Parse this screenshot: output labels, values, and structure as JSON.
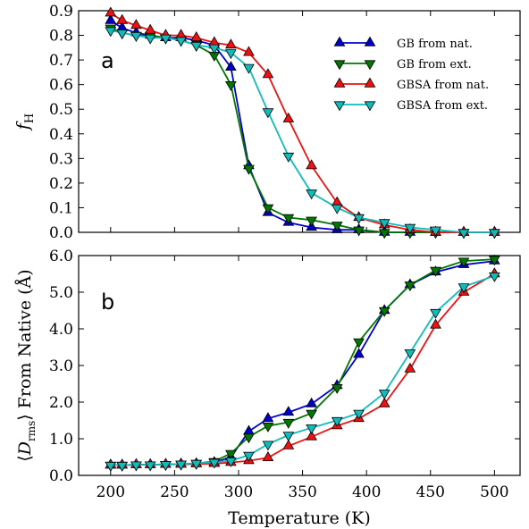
{
  "chart_data": [
    {
      "type": "line",
      "panel_label": "a",
      "ylabel": "f_H",
      "ylim": [
        0.0,
        0.9
      ],
      "xlim": [
        175,
        520
      ],
      "yticks": [
        "0.0",
        "0.1",
        "0.2",
        "0.3",
        "0.4",
        "0.5",
        "0.6",
        "0.7",
        "0.8",
        "0.9"
      ],
      "legend": "top-right",
      "series": [
        {
          "name": "GB from nat.",
          "color": "#0000cc",
          "marker": "triangle-up",
          "x": [
            200,
            209,
            220,
            231,
            243,
            255,
            267,
            281,
            294,
            308,
            323,
            339,
            357,
            377,
            394,
            414,
            434,
            454,
            476,
            500
          ],
          "y": [
            0.86,
            0.83,
            0.81,
            0.8,
            0.79,
            0.79,
            0.78,
            0.76,
            0.67,
            0.27,
            0.08,
            0.04,
            0.02,
            0.01,
            0.01,
            0.0,
            0.0,
            0.0,
            0.0,
            0.0
          ]
        },
        {
          "name": "GB from ext.",
          "color": "#007700",
          "marker": "triangle-down",
          "x": [
            200,
            209,
            220,
            231,
            243,
            255,
            267,
            281,
            294,
            308,
            323,
            339,
            357,
            377,
            394,
            414,
            434,
            454,
            476,
            500
          ],
          "y": [
            0.83,
            0.81,
            0.8,
            0.8,
            0.79,
            0.78,
            0.76,
            0.72,
            0.6,
            0.26,
            0.1,
            0.06,
            0.05,
            0.03,
            0.01,
            0.0,
            0.0,
            0.0,
            0.0,
            0.0
          ]
        },
        {
          "name": "GBSA from nat.",
          "color": "#ee1111",
          "marker": "triangle-up",
          "x": [
            200,
            209,
            220,
            231,
            243,
            255,
            267,
            281,
            294,
            308,
            323,
            339,
            357,
            377,
            394,
            414,
            434,
            454,
            476,
            500
          ],
          "y": [
            0.89,
            0.86,
            0.84,
            0.82,
            0.8,
            0.8,
            0.79,
            0.77,
            0.76,
            0.73,
            0.64,
            0.46,
            0.27,
            0.12,
            0.06,
            0.03,
            0.01,
            0.0,
            0.0,
            0.0
          ]
        },
        {
          "name": "GBSA from ext.",
          "color": "#11bbbb",
          "marker": "triangle-down",
          "x": [
            200,
            209,
            220,
            231,
            243,
            255,
            267,
            281,
            294,
            308,
            323,
            339,
            357,
            377,
            394,
            414,
            434,
            454,
            476,
            500
          ],
          "y": [
            0.82,
            0.81,
            0.8,
            0.79,
            0.79,
            0.78,
            0.76,
            0.75,
            0.73,
            0.67,
            0.49,
            0.31,
            0.16,
            0.1,
            0.06,
            0.04,
            0.02,
            0.01,
            0.0,
            0.0
          ]
        }
      ]
    },
    {
      "type": "line",
      "panel_label": "b",
      "xlabel": "Temperature (K)",
      "ylabel": "⟨D_rms⟩ From Native (Å)",
      "ylim": [
        0.0,
        6.0
      ],
      "xlim": [
        175,
        520
      ],
      "xticks": [
        "200",
        "250",
        "300",
        "350",
        "400",
        "450",
        "500"
      ],
      "yticks": [
        "0.0",
        "1.0",
        "2.0",
        "3.0",
        "4.0",
        "5.0",
        "6.0"
      ],
      "series": [
        {
          "name": "GB from nat.",
          "color": "#0000cc",
          "marker": "triangle-up",
          "x": [
            200,
            209,
            220,
            231,
            243,
            255,
            267,
            281,
            294,
            308,
            323,
            339,
            357,
            377,
            394,
            414,
            434,
            454,
            476,
            500
          ],
          "y": [
            0.28,
            0.28,
            0.29,
            0.29,
            0.3,
            0.31,
            0.32,
            0.35,
            0.5,
            1.2,
            1.55,
            1.72,
            1.95,
            2.45,
            3.3,
            4.5,
            5.2,
            5.55,
            5.75,
            5.85
          ]
        },
        {
          "name": "GB from ext.",
          "color": "#007700",
          "marker": "triangle-down",
          "x": [
            200,
            209,
            220,
            231,
            243,
            255,
            267,
            281,
            294,
            308,
            323,
            339,
            357,
            377,
            394,
            414,
            434,
            454,
            476,
            500
          ],
          "y": [
            0.28,
            0.28,
            0.29,
            0.29,
            0.3,
            0.31,
            0.33,
            0.38,
            0.6,
            1.05,
            1.35,
            1.45,
            1.7,
            2.4,
            3.65,
            4.5,
            5.2,
            5.6,
            5.85,
            5.9
          ]
        },
        {
          "name": "GBSA from nat.",
          "color": "#ee1111",
          "marker": "triangle-up",
          "x": [
            200,
            209,
            220,
            231,
            243,
            255,
            267,
            281,
            294,
            308,
            323,
            339,
            357,
            377,
            394,
            414,
            434,
            454,
            476,
            500
          ],
          "y": [
            0.28,
            0.28,
            0.29,
            0.29,
            0.3,
            0.3,
            0.31,
            0.32,
            0.35,
            0.4,
            0.48,
            0.8,
            1.05,
            1.35,
            1.55,
            1.95,
            2.9,
            4.1,
            5.0,
            5.5
          ]
        },
        {
          "name": "GBSA from ext.",
          "color": "#11bbbb",
          "marker": "triangle-down",
          "x": [
            200,
            209,
            220,
            231,
            243,
            255,
            267,
            281,
            294,
            308,
            323,
            339,
            357,
            377,
            394,
            414,
            434,
            454,
            476,
            500
          ],
          "y": [
            0.28,
            0.28,
            0.29,
            0.29,
            0.3,
            0.31,
            0.33,
            0.36,
            0.4,
            0.55,
            0.85,
            1.1,
            1.3,
            1.5,
            1.7,
            2.25,
            3.35,
            4.45,
            5.15,
            5.45
          ]
        }
      ]
    }
  ]
}
